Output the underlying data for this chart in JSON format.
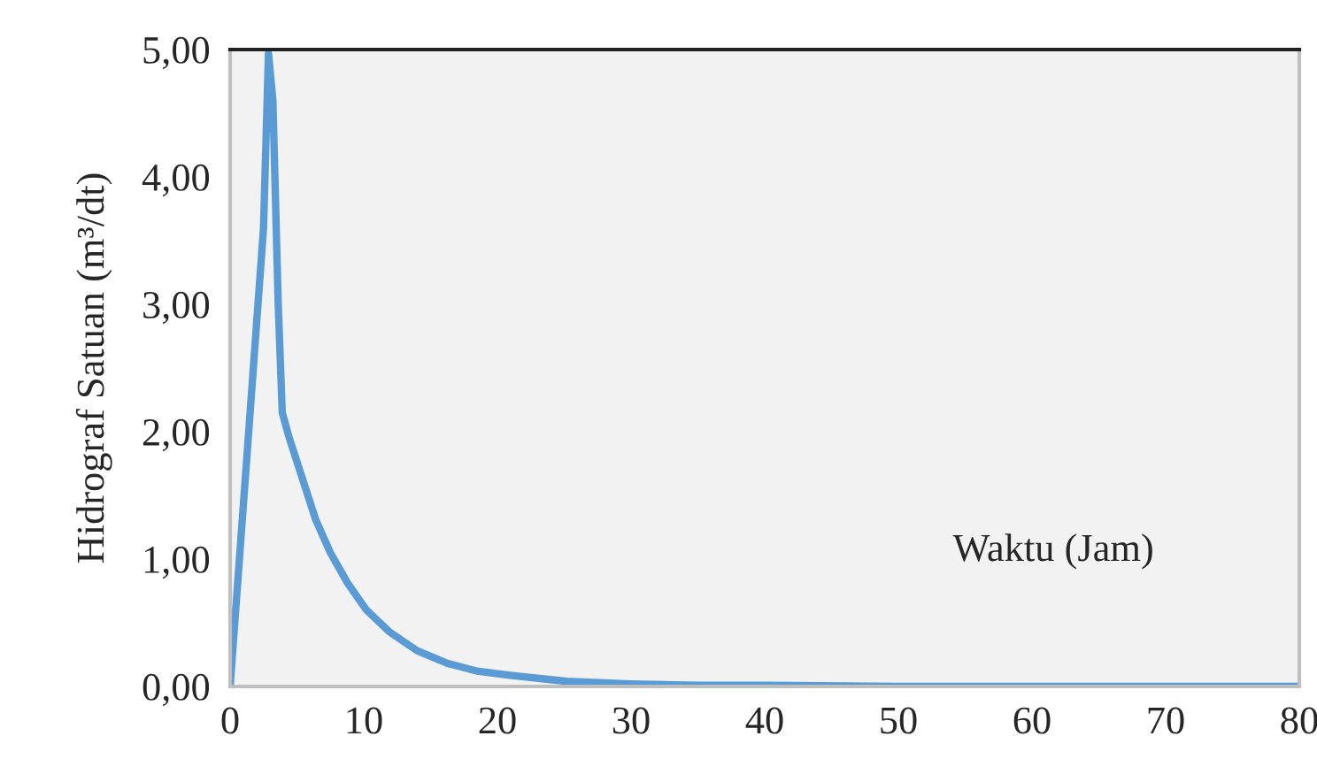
{
  "chart_data": {
    "type": "line",
    "xlabel": "Waktu (Jam)",
    "ylabel": "Hidrograf Satuan (m³/dt)",
    "series": [
      {
        "color": "#5b9bd5",
        "x": [
          0,
          1.3,
          2.5,
          2.87,
          3.2,
          3.6,
          3.9,
          4.4,
          5.2,
          6.4,
          7.5,
          8.8,
          10.2,
          11.9,
          14,
          16.3,
          18.5,
          20.8,
          25.2,
          30,
          35,
          40,
          50,
          60,
          70,
          80
        ],
        "values": [
          0,
          1.87,
          3.6,
          4.97,
          4.6,
          3.0,
          2.15,
          1.96,
          1.7,
          1.31,
          1.05,
          0.81,
          0.6,
          0.43,
          0.28,
          0.18,
          0.12,
          0.09,
          0.04,
          0.02,
          0.01,
          0.01,
          0,
          0,
          0,
          0
        ]
      }
    ],
    "xlim": [
      0,
      80
    ],
    "xticks": [
      0,
      10,
      20,
      30,
      40,
      50,
      60,
      70,
      80
    ],
    "ylim": [
      0,
      5
    ],
    "yticks": [
      {
        "value": 0,
        "label": "0,00"
      },
      {
        "value": 1,
        "label": "1,00"
      },
      {
        "value": 2,
        "label": "2,00"
      },
      {
        "value": 3,
        "label": "3,00"
      },
      {
        "value": 4,
        "label": "4,00"
      },
      {
        "value": 5,
        "label": "5,00"
      }
    ],
    "grid": false,
    "legend": false,
    "marker": "none",
    "line_style": "solid"
  }
}
